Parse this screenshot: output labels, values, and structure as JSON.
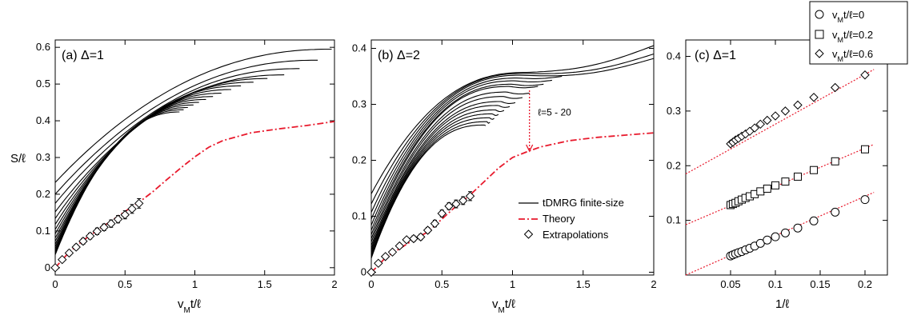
{
  "chart_data": [
    {
      "id": "a",
      "type": "line",
      "title": "(a) Δ=1",
      "xlabel": "v_Mt/ℓ",
      "ylabel": "S/ℓ",
      "xlim": [
        0,
        2
      ],
      "ylim": [
        -0.02,
        0.62
      ],
      "xticks": [
        "0",
        "0.5",
        "1",
        "1.5",
        "2"
      ],
      "xtick_values": [
        0,
        0.5,
        1,
        1.5,
        2
      ],
      "yticks": [
        "0",
        "0.1",
        "0.2",
        "0.3",
        "0.4",
        "0.5",
        "0.6"
      ],
      "ytick_values": [
        0,
        0.1,
        0.2,
        0.3,
        0.4,
        0.5,
        0.6
      ],
      "grid": false,
      "finite_size": [
        {
          "y0": 0.232,
          "xmax": 1.98,
          "yend": 0.595
        },
        {
          "y0": 0.2,
          "xmax": 1.88,
          "yend": 0.565
        },
        {
          "y0": 0.175,
          "xmax": 1.75,
          "yend": 0.542
        },
        {
          "y0": 0.152,
          "xmax": 1.64,
          "yend": 0.525
        },
        {
          "y0": 0.134,
          "xmax": 1.52,
          "yend": 0.515
        },
        {
          "y0": 0.118,
          "xmax": 1.42,
          "yend": 0.505
        },
        {
          "y0": 0.104,
          "xmax": 1.33,
          "yend": 0.495
        },
        {
          "y0": 0.092,
          "xmax": 1.26,
          "yend": 0.485
        },
        {
          "y0": 0.081,
          "xmax": 1.19,
          "yend": 0.475
        },
        {
          "y0": 0.072,
          "xmax": 1.13,
          "yend": 0.466
        },
        {
          "y0": 0.064,
          "xmax": 1.08,
          "yend": 0.458
        },
        {
          "y0": 0.057,
          "xmax": 1.03,
          "yend": 0.45
        },
        {
          "y0": 0.051,
          "xmax": 0.99,
          "yend": 0.443
        },
        {
          "y0": 0.045,
          "xmax": 0.95,
          "yend": 0.436
        },
        {
          "y0": 0.04,
          "xmax": 0.92,
          "yend": 0.43
        },
        {
          "y0": 0.035,
          "xmax": 0.89,
          "yend": 0.424
        }
      ],
      "theory": {
        "x": [
          0,
          0.05,
          0.1,
          0.2,
          0.3,
          0.4,
          0.5,
          0.6,
          0.7,
          0.8,
          0.9,
          1.0,
          1.1,
          1.2,
          1.4,
          1.6,
          1.8,
          2.0
        ],
        "y": [
          0,
          0.021,
          0.043,
          0.074,
          0.101,
          0.127,
          0.153,
          0.178,
          0.207,
          0.24,
          0.272,
          0.302,
          0.328,
          0.346,
          0.367,
          0.378,
          0.387,
          0.398
        ]
      },
      "extrapolations": {
        "x": [
          0,
          0.05,
          0.1,
          0.15,
          0.2,
          0.25,
          0.3,
          0.35,
          0.4,
          0.45,
          0.5,
          0.55,
          0.6
        ],
        "y": [
          0,
          0.022,
          0.04,
          0.056,
          0.072,
          0.086,
          0.099,
          0.11,
          0.12,
          0.132,
          0.144,
          0.16,
          0.175
        ],
        "err": [
          0,
          0.006,
          0.007,
          0.007,
          0.008,
          0.008,
          0.009,
          0.009,
          0.01,
          0.01,
          0.011,
          0.012,
          0.013
        ]
      }
    },
    {
      "id": "b",
      "type": "line",
      "title": "(b) Δ=2",
      "xlabel": "v_Mt/ℓ",
      "ylabel": "",
      "xlim": [
        0,
        2
      ],
      "ylim": [
        -0.005,
        0.415
      ],
      "xticks": [
        "0",
        "0.5",
        "1",
        "1.5",
        "2"
      ],
      "xtick_values": [
        0,
        0.5,
        1,
        1.5,
        2
      ],
      "yticks": [
        "0",
        "0.1",
        "0.2",
        "0.3",
        "0.4"
      ],
      "ytick_values": [
        0,
        0.1,
        0.2,
        0.3,
        0.4
      ],
      "grid": false,
      "finite_size": [
        {
          "y0": 0.14,
          "xmax": 2.0,
          "yend": 0.405,
          "peak": 0.357,
          "xp": 1.1
        },
        {
          "y0": 0.122,
          "xmax": 2.0,
          "yend": 0.39,
          "peak": 0.355,
          "xp": 1.08
        },
        {
          "y0": 0.107,
          "xmax": 2.0,
          "yend": 0.382,
          "peak": 0.352,
          "xp": 1.06
        },
        {
          "y0": 0.095,
          "xmax": 1.35,
          "yend": 0.35,
          "peak": 0.347,
          "xp": 1.04
        },
        {
          "y0": 0.084,
          "xmax": 1.28,
          "yend": 0.343,
          "peak": 0.342,
          "xp": 1.02
        },
        {
          "y0": 0.075,
          "xmax": 1.22,
          "yend": 0.336,
          "peak": 0.336,
          "xp": 1.0
        },
        {
          "y0": 0.067,
          "xmax": 1.18,
          "yend": 0.332,
          "peak": 0.332,
          "xp": 0.98
        },
        {
          "y0": 0.06,
          "xmax": 1.12,
          "yend": 0.32,
          "peak": 0.322,
          "xp": 0.96
        },
        {
          "y0": 0.054,
          "xmax": 1.07,
          "yend": 0.312,
          "peak": 0.314,
          "xp": 0.94
        },
        {
          "y0": 0.048,
          "xmax": 1.02,
          "yend": 0.303,
          "peak": 0.305,
          "xp": 0.92
        },
        {
          "y0": 0.043,
          "xmax": 0.98,
          "yend": 0.296,
          "peak": 0.298,
          "xp": 0.9
        },
        {
          "y0": 0.039,
          "xmax": 0.94,
          "yend": 0.289,
          "peak": 0.29,
          "xp": 0.88
        },
        {
          "y0": 0.035,
          "xmax": 0.9,
          "yend": 0.282,
          "peak": 0.283,
          "xp": 0.86
        },
        {
          "y0": 0.031,
          "xmax": 0.87,
          "yend": 0.275,
          "peak": 0.276,
          "xp": 0.84
        },
        {
          "y0": 0.028,
          "xmax": 0.84,
          "yend": 0.268,
          "peak": 0.269,
          "xp": 0.82
        },
        {
          "y0": 0.025,
          "xmax": 0.81,
          "yend": 0.262,
          "peak": 0.263,
          "xp": 0.8
        }
      ],
      "theory": {
        "x": [
          0,
          0.05,
          0.1,
          0.2,
          0.3,
          0.4,
          0.5,
          0.6,
          0.7,
          0.8,
          0.9,
          1.0,
          1.1,
          1.2,
          1.4,
          1.6,
          1.8,
          2.0
        ],
        "y": [
          0,
          0.012,
          0.026,
          0.042,
          0.058,
          0.072,
          0.095,
          0.118,
          0.138,
          0.162,
          0.186,
          0.205,
          0.215,
          0.224,
          0.235,
          0.241,
          0.245,
          0.249
        ]
      },
      "extrapolations": {
        "x": [
          0,
          0.05,
          0.1,
          0.15,
          0.2,
          0.25,
          0.3,
          0.35,
          0.4,
          0.45,
          0.5,
          0.55,
          0.6,
          0.65,
          0.7
        ],
        "y": [
          0,
          0.016,
          0.028,
          0.036,
          0.047,
          0.058,
          0.06,
          0.063,
          0.075,
          0.087,
          0.105,
          0.118,
          0.122,
          0.128,
          0.136
        ],
        "err": [
          0,
          0.003,
          0.003,
          0.004,
          0.004,
          0.004,
          0.005,
          0.005,
          0.005,
          0.006,
          0.006,
          0.006,
          0.007,
          0.007,
          0.008
        ]
      },
      "annotation": {
        "text": "ℓ=5 - 20",
        "x_from": 1.12,
        "y_from": 0.325,
        "y_to": 0.215,
        "label_x": 1.18,
        "label_y": 0.28
      },
      "legend": {
        "placement": "bottom-right",
        "entries": [
          {
            "label": "tDMRG finite-size",
            "style": "solid"
          },
          {
            "label": "Theory",
            "style": "dashdot"
          },
          {
            "label": "Extrapolations",
            "style": "diamond"
          }
        ]
      }
    },
    {
      "id": "c",
      "type": "scatter",
      "title": "(c) Δ=1",
      "xlabel": "1/ℓ",
      "ylabel": "",
      "xlim": [
        0,
        0.225
      ],
      "ylim": [
        0,
        0.43
      ],
      "xticks": [
        "0.05",
        "0.1",
        "0.15",
        "0.2"
      ],
      "xtick_values": [
        0.05,
        0.1,
        0.15,
        0.2
      ],
      "yticks": [
        "0.1",
        "0.2",
        "0.3",
        "0.4"
      ],
      "ytick_values": [
        0.1,
        0.2,
        0.3,
        0.4
      ],
      "grid": false,
      "series": [
        {
          "name": "v_Mt/ℓ=0",
          "marker": "circle",
          "x": [
            0.05,
            0.0526,
            0.0556,
            0.0588,
            0.0625,
            0.0667,
            0.0714,
            0.0769,
            0.0833,
            0.0909,
            0.1,
            0.1111,
            0.125,
            0.1429,
            0.1667,
            0.2
          ],
          "y": [
            0.035,
            0.037,
            0.039,
            0.041,
            0.043,
            0.046,
            0.049,
            0.053,
            0.058,
            0.064,
            0.07,
            0.077,
            0.086,
            0.099,
            0.115,
            0.138
          ],
          "fit": {
            "intercept": 0.0,
            "slope": 0.72
          }
        },
        {
          "name": "v_Mt/ℓ=0.2",
          "marker": "square",
          "x": [
            0.05,
            0.0526,
            0.0556,
            0.0588,
            0.0625,
            0.0667,
            0.0714,
            0.0769,
            0.0833,
            0.0909,
            0.1,
            0.1111,
            0.125,
            0.1429,
            0.1667,
            0.2
          ],
          "y": [
            0.128,
            0.13,
            0.132,
            0.135,
            0.138,
            0.141,
            0.144,
            0.148,
            0.153,
            0.158,
            0.164,
            0.171,
            0.18,
            0.192,
            0.208,
            0.23
          ],
          "fit": {
            "intercept": 0.092,
            "slope": 0.7
          }
        },
        {
          "name": "v_Mt/ℓ=0.6",
          "marker": "diamond",
          "x": [
            0.05,
            0.0526,
            0.0556,
            0.0588,
            0.0625,
            0.0667,
            0.0714,
            0.0769,
            0.0833,
            0.0909,
            0.1,
            0.1111,
            0.125,
            0.1429,
            0.1667,
            0.2
          ],
          "y": [
            0.24,
            0.243,
            0.247,
            0.25,
            0.254,
            0.258,
            0.263,
            0.269,
            0.276,
            0.283,
            0.291,
            0.3,
            0.311,
            0.325,
            0.343,
            0.366
          ],
          "fit": {
            "intercept": 0.185,
            "slope": 0.91
          }
        }
      ],
      "legend": {
        "placement": "top-right",
        "entries": [
          "v_Mt/ℓ=0",
          "v_Mt/ℓ=0.2",
          "v_Mt/ℓ=0.6"
        ]
      }
    }
  ],
  "colors": {
    "finite_size": "#000000",
    "theory": "#e8192c",
    "fit": "#e8192c",
    "markers": "#000000"
  }
}
